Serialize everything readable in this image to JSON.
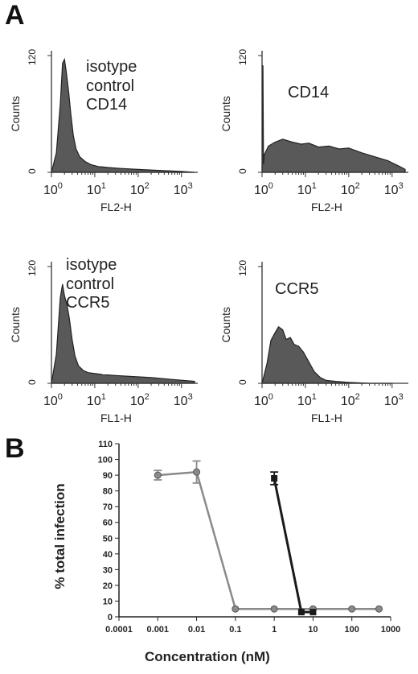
{
  "panels": {
    "a_label": "A",
    "b_label": "B"
  },
  "chart_data": [
    {
      "type": "area",
      "panel": "A",
      "position": "top-left",
      "annotation": [
        "isotype",
        "control",
        "CD14"
      ],
      "xlabel": "FL2-H",
      "ylabel": "Counts",
      "x_scale": "log",
      "xlim": [
        1,
        2000
      ],
      "ylim": [
        0,
        120
      ],
      "y_ticks": [
        "0",
        "120"
      ],
      "x_ticks": [
        "10^0",
        "10^1",
        "10^2",
        "10^3"
      ],
      "x": [
        1,
        1.3,
        1.6,
        1.8,
        2.0,
        2.2,
        2.5,
        2.8,
        3.2,
        3.7,
        4.5,
        6,
        8,
        12,
        20,
        40,
        100,
        300,
        1000,
        2000
      ],
      "y": [
        0,
        20,
        70,
        112,
        116,
        103,
        82,
        60,
        38,
        24,
        16,
        11,
        8,
        6,
        5,
        4,
        3,
        2,
        1,
        0
      ]
    },
    {
      "type": "area",
      "panel": "A",
      "position": "top-right",
      "annotation": [
        "CD14"
      ],
      "xlabel": "FL2-H",
      "ylabel": "Counts",
      "x_scale": "log",
      "xlim": [
        1,
        2000
      ],
      "ylim": [
        0,
        120
      ],
      "y_ticks": [
        "0",
        "120"
      ],
      "x_ticks": [
        "10^0",
        "10^1",
        "10^2",
        "10^3"
      ],
      "x": [
        1,
        1.05,
        1.08,
        1.12,
        1.4,
        2,
        3,
        5,
        8,
        12,
        20,
        35,
        60,
        100,
        200,
        400,
        800,
        1500,
        2000
      ],
      "y": [
        0,
        110,
        8,
        18,
        27,
        31,
        34,
        31,
        29,
        30,
        26,
        27,
        24,
        25,
        20,
        16,
        12,
        6,
        3
      ]
    },
    {
      "type": "area",
      "panel": "A",
      "position": "bottom-left",
      "annotation": [
        "isotype",
        "control",
        "CCR5"
      ],
      "xlabel": "FL1-H",
      "ylabel": "Counts",
      "x_scale": "log",
      "xlim": [
        1,
        2000
      ],
      "ylim": [
        0,
        120
      ],
      "y_ticks": [
        "0",
        "120"
      ],
      "x_ticks": [
        "10^0",
        "10^1",
        "10^2",
        "10^3"
      ],
      "x": [
        1,
        1.3,
        1.6,
        1.8,
        2.0,
        2.3,
        2.6,
        3.0,
        3.5,
        4.2,
        5.5,
        7,
        10,
        15,
        30,
        70,
        200,
        600,
        2000
      ],
      "y": [
        0,
        30,
        88,
        102,
        90,
        80,
        66,
        45,
        28,
        18,
        13,
        11,
        10,
        9,
        8,
        7,
        6,
        4,
        2
      ]
    },
    {
      "type": "area",
      "panel": "A",
      "position": "bottom-right",
      "annotation": [
        "CCR5"
      ],
      "xlabel": "FL1-H",
      "ylabel": "Counts",
      "x_scale": "log",
      "xlim": [
        1,
        2000
      ],
      "ylim": [
        0,
        120
      ],
      "y_ticks": [
        "0",
        "120"
      ],
      "x_ticks": [
        "10^0",
        "10^1",
        "10^2",
        "10^3"
      ],
      "x": [
        1,
        1.3,
        1.6,
        2.0,
        2.4,
        3.0,
        3.6,
        4.5,
        5.5,
        7,
        9,
        12,
        16,
        22,
        30,
        50,
        100,
        300,
        1000
      ],
      "y": [
        0,
        20,
        44,
        52,
        58,
        55,
        45,
        47,
        40,
        38,
        32,
        22,
        12,
        6,
        3,
        2,
        1,
        0,
        0
      ]
    },
    {
      "type": "line",
      "panel": "B",
      "xlabel": "Concentration  (nM)",
      "ylabel": "% total infection",
      "x_scale": "log",
      "xlim": [
        0.0001,
        1000
      ],
      "ylim": [
        0,
        110
      ],
      "y_ticks": [
        0,
        10,
        20,
        30,
        40,
        50,
        60,
        70,
        80,
        90,
        100,
        110
      ],
      "x_tick_labels": [
        "0.0001",
        "0.001",
        "0.01",
        "0.1",
        "1",
        "10",
        "100",
        "1000"
      ],
      "x_tick_values": [
        0.0001,
        0.001,
        0.01,
        0.1,
        1,
        10,
        100,
        1000
      ],
      "series": [
        {
          "color": "#8a8a8a",
          "marker": "circle",
          "x": [
            0.001,
            0.01,
            0.1,
            1,
            10,
            100,
            500
          ],
          "y": [
            90,
            92,
            5,
            5,
            5,
            5,
            5
          ],
          "err": [
            3,
            7,
            0,
            0,
            0,
            0,
            0
          ]
        },
        {
          "color": "#1a1a1a",
          "marker": "square",
          "x": [
            1,
            5,
            10
          ],
          "y": [
            88,
            3,
            3
          ],
          "err": [
            4,
            0,
            0
          ]
        }
      ]
    }
  ]
}
